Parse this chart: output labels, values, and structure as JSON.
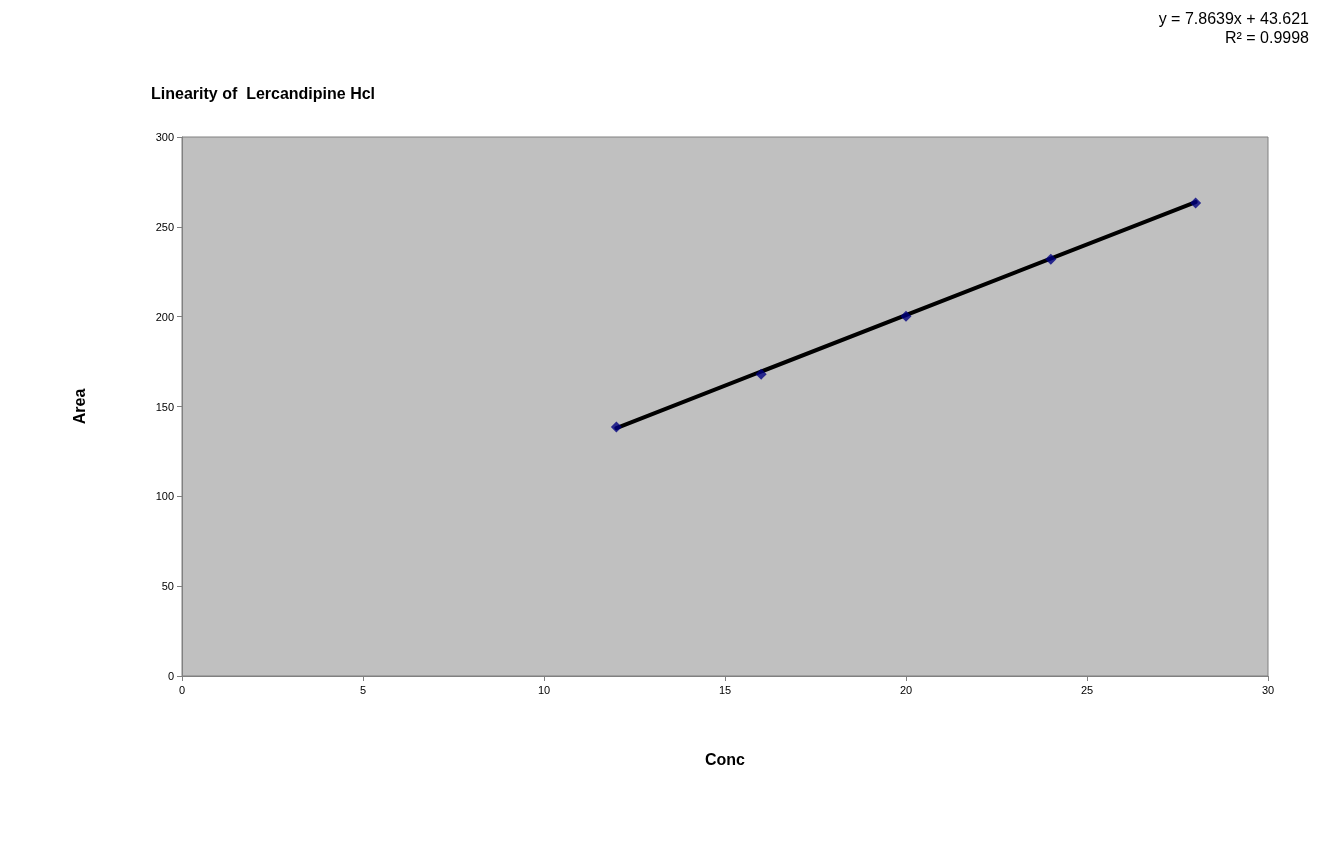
{
  "chart_data": {
    "type": "scatter",
    "title": "Linearity of  Lercandipine Hcl",
    "xlabel": "Conc",
    "ylabel": "Area",
    "xlim": [
      0,
      30
    ],
    "xticks": [
      0,
      5,
      10,
      15,
      20,
      25,
      30
    ],
    "ylim": [
      0,
      300
    ],
    "yticks": [
      0,
      50,
      100,
      150,
      200,
      250,
      300
    ],
    "series": [
      {
        "type": "scatter",
        "color": "#000080",
        "marker": "diamond",
        "x": [
          12,
          16,
          20,
          24,
          28
        ],
        "values": [
          138.6,
          168,
          200.3,
          232,
          263.2
        ]
      },
      {
        "type": "line",
        "color": "#000000",
        "marker": "none",
        "line_style": "solid",
        "x": [
          12,
          28
        ],
        "values": [
          138,
          263.8
        ]
      }
    ],
    "annotations": [
      "y = 7.8639x + 43.621",
      "R² = 0.9998"
    ]
  }
}
